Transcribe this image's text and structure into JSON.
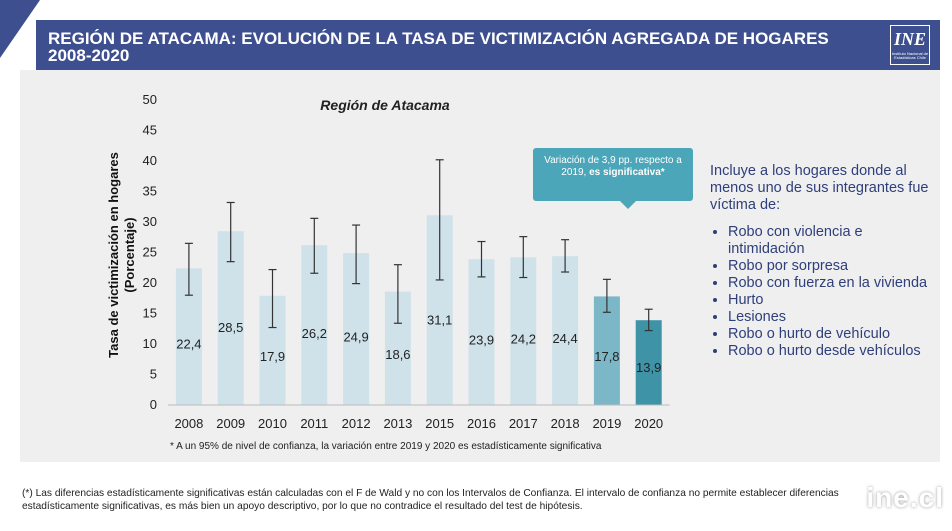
{
  "header": {
    "title_line1": "REGIÓN DE ATACAMA: EVOLUCIÓN DE LA TASA DE VICTIMIZACIÓN AGREGADA DE HOGARES",
    "title_line2": "2008-2020",
    "logo_text": "INE",
    "logo_small": "Instituto Nacional de Estadísticas Chile"
  },
  "callout": {
    "text": "Variación de 3,9 pp. respecto a 2019,",
    "bold": "es significativa*"
  },
  "side": {
    "intro": "Incluye a los hogares donde al menos uno de sus integrantes fue víctima de:",
    "items": [
      "Robo con violencia e intimidación",
      "Robo por sorpresa",
      "Robo con fuerza en la vivienda",
      "Hurto",
      "Lesiones",
      "Robo o hurto de vehículo",
      "Robo o hurto desde vehículos"
    ]
  },
  "footnote_chart": "* A un 95% de nivel de confianza, la variación entre 2019 y 2020 es estadísticamente significativa",
  "footnote": "(*) Las diferencias estadísticamente significativas están calculadas con el F de Wald y no con los Intervalos de Confianza. El intervalo de confianza no permite establecer diferencias estadísticamente significativas, es más bien un apoyo descriptivo, por lo que no contradice el resultado del test de hipótesis.",
  "watermark": "ine.cl",
  "chart_data": {
    "type": "bar",
    "title": "Región de Atacama",
    "ylabel_line1": "Tasa de victimización en hogares",
    "ylabel_line2": "(Porcentaje)",
    "ylim": [
      0,
      50
    ],
    "yticks": [
      0,
      5,
      10,
      15,
      20,
      25,
      30,
      35,
      40,
      45,
      50
    ],
    "categories": [
      "2008",
      "2009",
      "2010",
      "2011",
      "2012",
      "2013",
      "2015",
      "2016",
      "2017",
      "2018",
      "2019",
      "2020"
    ],
    "values": [
      22.4,
      28.5,
      17.9,
      26.2,
      24.9,
      18.6,
      31.1,
      23.9,
      24.2,
      24.4,
      17.8,
      13.9
    ],
    "labels": [
      "22,4",
      "28,5",
      "17,9",
      "26,2",
      "24,9",
      "18,6",
      "31,1",
      "23,9",
      "24,2",
      "24,4",
      "17,8",
      "13,9"
    ],
    "ci_low": [
      18.0,
      23.5,
      12.7,
      21.6,
      19.9,
      13.4,
      20.5,
      21.0,
      20.9,
      21.8,
      15.2,
      12.2
    ],
    "ci_high": [
      26.5,
      33.2,
      22.2,
      30.6,
      29.5,
      23.0,
      40.2,
      26.8,
      27.6,
      27.1,
      20.6,
      15.7
    ],
    "colors": {
      "default": "#cfe2ea",
      "highlight_2019": "#7bb7c7",
      "highlight_2020": "#3e93a7",
      "header": "#3d4f8f",
      "callout": "#4aa6b8"
    }
  }
}
